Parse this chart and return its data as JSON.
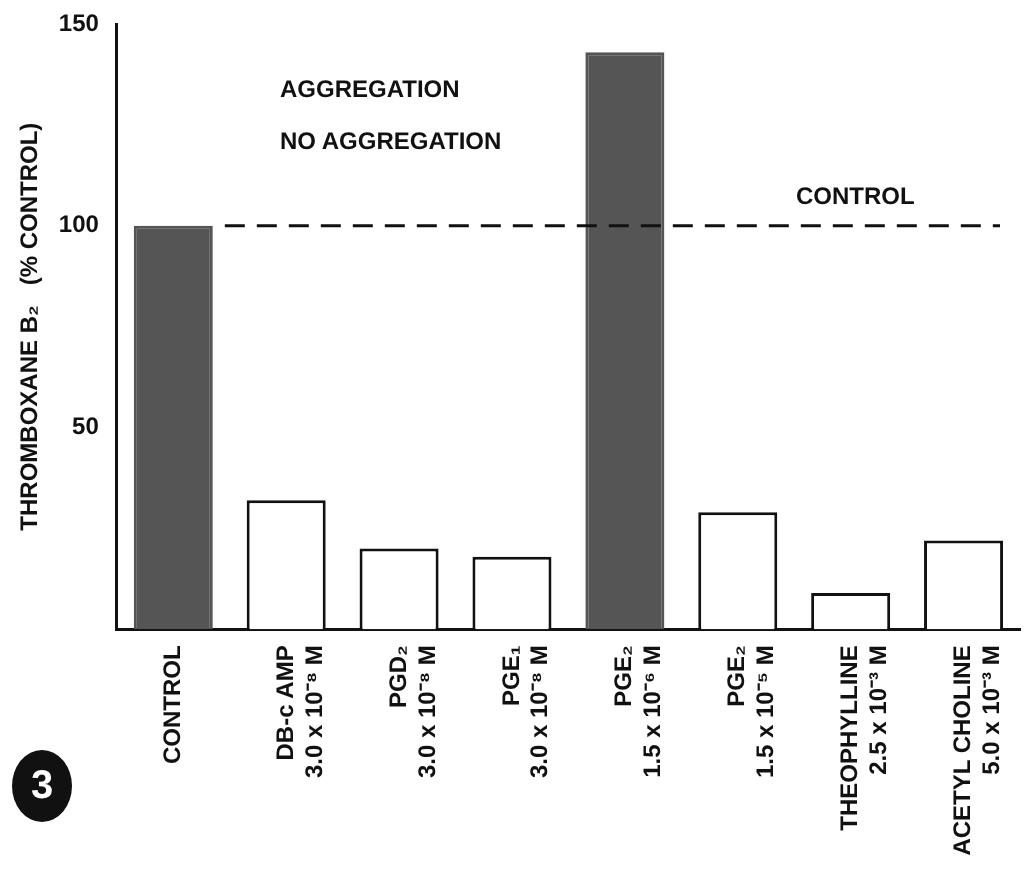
{
  "chart_data": {
    "type": "bar",
    "ylabel": "THROMBOXANE B₂   (% CONTROL)",
    "categories": [
      "CONTROL",
      "DB-c AMP\n3.0 x 10⁻⁸ M",
      "PGD₂\n3.0 x 10⁻⁸ M",
      "PGE₁\n3.0 x 10⁻⁸ M",
      "PGE₂\n1.5 x 10⁻⁶ M",
      "PGE₂\n1.5 x 10⁻⁵ M",
      "THEOPHYLLINE\n2.5 x 10⁻³ M",
      "ACETYL CHOLINE\n5.0 x 10⁻³ M"
    ],
    "values": [
      100,
      32,
      20,
      18,
      143,
      29,
      9,
      22
    ],
    "colors": [
      "#555555",
      "#ffffff",
      "#ffffff",
      "#ffffff",
      "#555555",
      "#ffffff",
      "#ffffff",
      "#ffffff"
    ],
    "ylim": [
      0,
      150
    ],
    "yticks": [
      50,
      100,
      150
    ],
    "grid": false,
    "ref_lines": [
      {
        "axis": "y",
        "value": 100,
        "label": "CONTROL",
        "line_style": "dashed",
        "color": "#111111"
      }
    ],
    "annotations": [
      "AGGREGATION",
      "NO AGGREGATION",
      "3"
    ]
  }
}
